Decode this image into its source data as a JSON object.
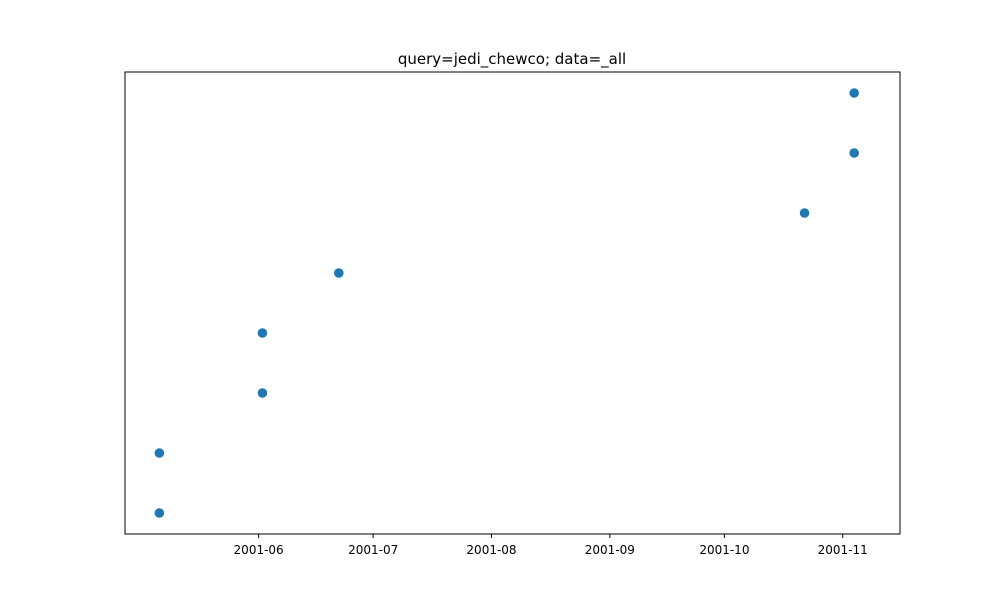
{
  "chart_data": {
    "type": "scatter",
    "title": "query=jedi_chewco; data=_all",
    "xlabel": "",
    "ylabel": "",
    "x_axis": "date",
    "y_axis_ticks_shown": false,
    "xlim": [
      "2001-04-27",
      "2001-11-16"
    ],
    "ylim": [
      -0.35,
      7.35
    ],
    "xticks": [
      "2001-06-01",
      "2001-07-01",
      "2001-08-01",
      "2001-09-01",
      "2001-10-01",
      "2001-11-01"
    ],
    "xtick_labels": [
      "2001-06",
      "2001-07",
      "2001-08",
      "2001-09",
      "2001-10",
      "2001-11"
    ],
    "grid": false,
    "legend": "none",
    "color": "#1f77b4",
    "points": [
      {
        "x": "2001-05-06",
        "y": 0
      },
      {
        "x": "2001-05-06",
        "y": 1
      },
      {
        "x": "2001-06-02",
        "y": 2
      },
      {
        "x": "2001-06-02",
        "y": 3
      },
      {
        "x": "2001-06-22",
        "y": 4
      },
      {
        "x": "2001-10-22",
        "y": 5
      },
      {
        "x": "2001-11-04",
        "y": 6
      },
      {
        "x": "2001-11-04",
        "y": 7
      }
    ]
  }
}
